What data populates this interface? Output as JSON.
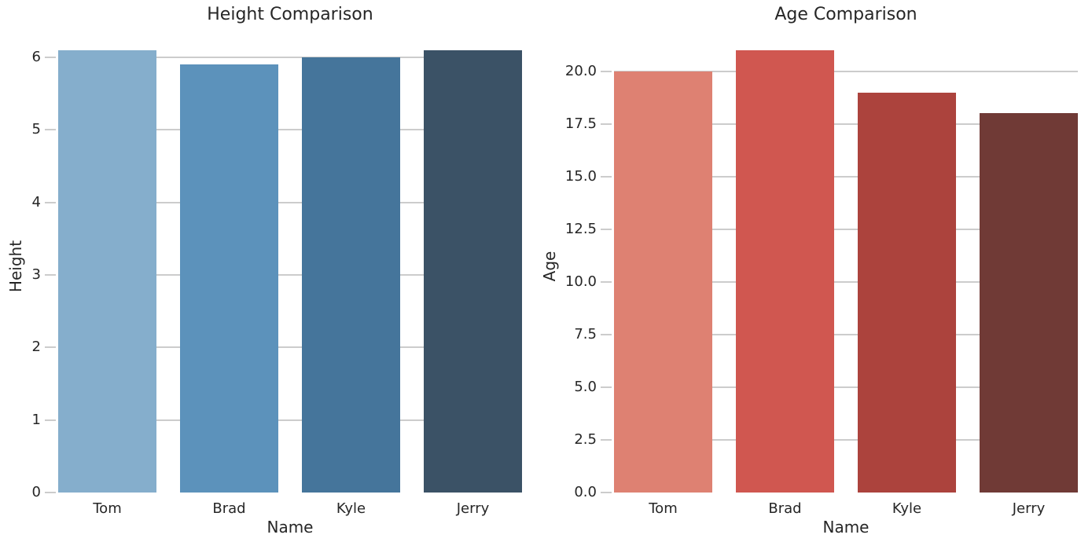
{
  "figure": {
    "background_color": "#ffffff",
    "grid_color": "#cccccc",
    "text_color": "#262626"
  },
  "chart_data": [
    {
      "type": "bar",
      "title": "Height Comparison",
      "xlabel": "Name",
      "ylabel": "Height",
      "categories": [
        "Tom",
        "Brad",
        "Kyle",
        "Jerry"
      ],
      "values": [
        6.1,
        5.9,
        6.0,
        6.1
      ],
      "bar_colors": [
        "#85AECC",
        "#5C92BB",
        "#45759B",
        "#3B5266"
      ],
      "ylim": [
        0,
        6.28
      ],
      "yticks": [
        0,
        1,
        2,
        3,
        4,
        5,
        6
      ],
      "ytick_labels": [
        "0",
        "1",
        "2",
        "3",
        "4",
        "5",
        "6"
      ],
      "grid": true,
      "legend": null
    },
    {
      "type": "bar",
      "title": "Age Comparison",
      "xlabel": "Name",
      "ylabel": "Age",
      "categories": [
        "Tom",
        "Brad",
        "Kyle",
        "Jerry"
      ],
      "values": [
        20,
        21,
        19,
        18
      ],
      "bar_colors": [
        "#DE8172",
        "#D05750",
        "#AC433D",
        "#703A36"
      ],
      "ylim": [
        0,
        21.63
      ],
      "yticks": [
        0,
        2.5,
        5,
        7.5,
        10,
        12.5,
        15,
        17.5,
        20
      ],
      "ytick_labels": [
        "0.0",
        "2.5",
        "5.0",
        "7.5",
        "10.0",
        "12.5",
        "15.0",
        "17.5",
        "20.0"
      ],
      "grid": true,
      "legend": null
    }
  ]
}
